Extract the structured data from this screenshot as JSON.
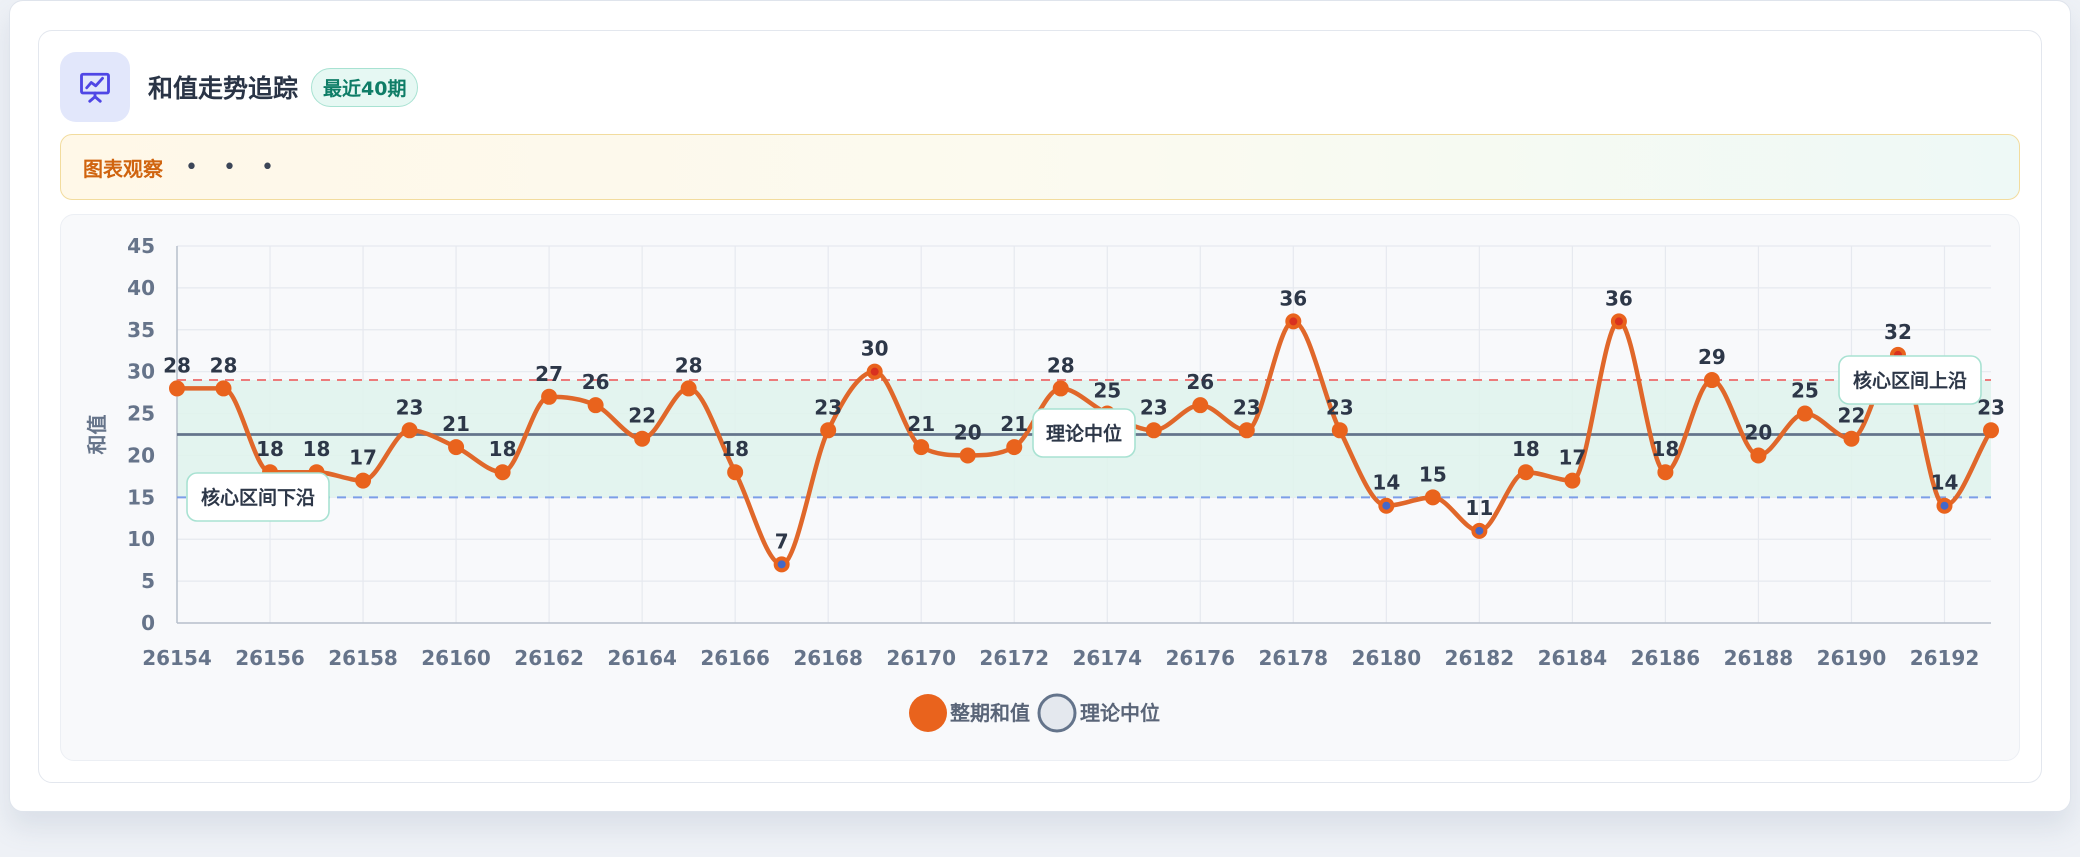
{
  "header": {
    "title": "和值走势追踪",
    "badge": "最近40期",
    "icon": "presentation-chart-icon"
  },
  "note": {
    "label": "图表观察",
    "more": "• • •"
  },
  "colors": {
    "series": "#e0672a",
    "point": "#e9631d",
    "high_point": "#d9311f",
    "low_point_center": "#4468c8",
    "median": "#64748b",
    "upper_line": "#ec7b7b",
    "lower_line": "#7c9ee8",
    "band": "#dff3ec",
    "accent": "#0f7d67"
  },
  "chart_data": {
    "type": "line",
    "ylabel": "和值",
    "ylim": [
      0,
      45
    ],
    "yticks": [
      0,
      5,
      10,
      15,
      20,
      25,
      30,
      35,
      40,
      45
    ],
    "x": [
      26154,
      26155,
      26156,
      26157,
      26158,
      26159,
      26160,
      26161,
      26162,
      26163,
      26164,
      26165,
      26166,
      26167,
      26168,
      26169,
      26170,
      26171,
      26172,
      26173,
      26174,
      26175,
      26176,
      26177,
      26178,
      26179,
      26180,
      26181,
      26182,
      26183,
      26184,
      26185,
      26186,
      26187,
      26188,
      26189,
      26190,
      26191,
      26192,
      26193
    ],
    "xticks": [
      "26154",
      "26156",
      "26158",
      "26160",
      "26162",
      "26164",
      "26166",
      "26168",
      "26170",
      "26172",
      "26174",
      "26176",
      "26178",
      "26180",
      "26182",
      "26184",
      "26186",
      "26188",
      "26190",
      "26192"
    ],
    "series": [
      {
        "name": "整期和值",
        "values": [
          28,
          28,
          18,
          18,
          17,
          23,
          21,
          18,
          27,
          26,
          22,
          28,
          18,
          7,
          23,
          30,
          21,
          20,
          21,
          28,
          25,
          23,
          26,
          23,
          36,
          23,
          14,
          15,
          11,
          18,
          17,
          36,
          18,
          29,
          20,
          25,
          22,
          32,
          14,
          23
        ]
      }
    ],
    "median": {
      "name": "理论中位",
      "value": 22.5,
      "label": "理论中位"
    },
    "band": {
      "lower": 15,
      "upper": 29,
      "lower_label": "核心区间下沿",
      "upper_label": "核心区间上沿"
    },
    "grid": true,
    "legend": {
      "position": "bottom",
      "items": [
        "整期和值",
        "理论中位"
      ]
    }
  }
}
